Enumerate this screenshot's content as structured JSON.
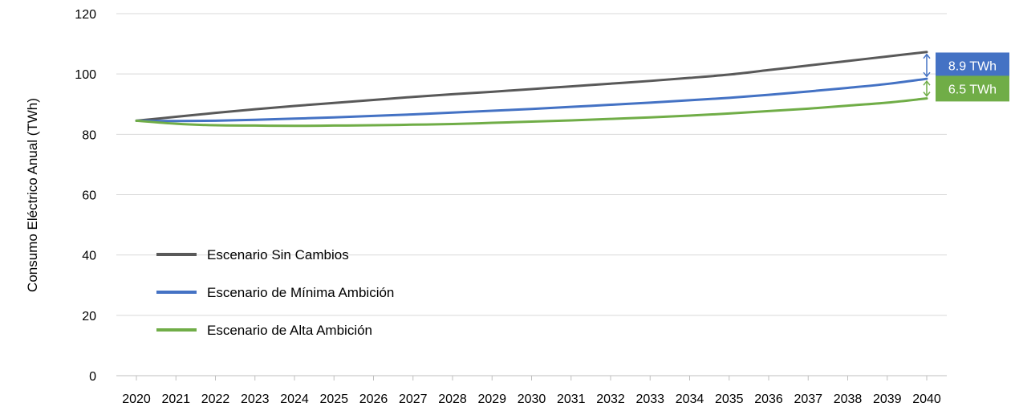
{
  "chart_data": {
    "type": "line",
    "title": "",
    "xlabel": "",
    "ylabel": "Consumo Eléctrico Anual (TWh)",
    "ylim": [
      0,
      120
    ],
    "yticks": [
      0,
      20,
      40,
      60,
      80,
      100,
      120
    ],
    "grid": true,
    "legend_position": "bottom-left",
    "categories": [
      "2020",
      "2021",
      "2022",
      "2023",
      "2024",
      "2025",
      "2026",
      "2027",
      "2028",
      "2029",
      "2030",
      "2031",
      "2032",
      "2033",
      "2034",
      "2035",
      "2036",
      "2037",
      "2038",
      "2039",
      "2040"
    ],
    "series": [
      {
        "name": "Escenario Sin Cambios",
        "color": "#595959",
        "values": [
          84.5,
          85.8,
          87.1,
          88.3,
          89.4,
          90.4,
          91.4,
          92.4,
          93.3,
          94.1,
          95.0,
          95.9,
          96.8,
          97.7,
          98.7,
          99.8,
          101.3,
          102.8,
          104.3,
          105.8,
          107.3
        ]
      },
      {
        "name": "Escenario de Mínima Ambición",
        "color": "#4472C4",
        "values": [
          84.5,
          84.4,
          84.5,
          84.8,
          85.2,
          85.6,
          86.1,
          86.6,
          87.2,
          87.8,
          88.4,
          89.1,
          89.8,
          90.5,
          91.3,
          92.1,
          93.1,
          94.2,
          95.4,
          96.7,
          98.4
        ]
      },
      {
        "name": "Escenario de Alta Ambición",
        "color": "#70AD47",
        "values": [
          84.5,
          83.5,
          83.0,
          82.9,
          82.8,
          82.9,
          83.0,
          83.2,
          83.4,
          83.8,
          84.2,
          84.6,
          85.1,
          85.6,
          86.2,
          86.9,
          87.7,
          88.5,
          89.5,
          90.5,
          91.9
        ]
      }
    ],
    "annotations": [
      {
        "label": "8.9 TWh",
        "color": "#4472C4",
        "from": 98.4,
        "to": 107.3
      },
      {
        "label": "6.5 TWh",
        "color": "#70AD47",
        "from": 91.9,
        "to": 98.4
      }
    ]
  }
}
